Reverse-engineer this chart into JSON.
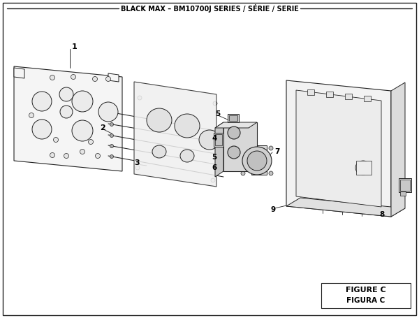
{
  "title": "BLACK MAX – BM10700J SERIES / SÉRIE / SERIE",
  "figure_label": "FIGURE C",
  "figura_label": "FIGURA C",
  "bg_color": "#ffffff",
  "border_color": "#222222",
  "line_color": "#222222"
}
